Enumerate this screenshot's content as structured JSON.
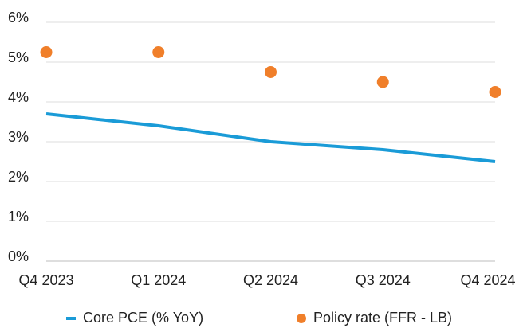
{
  "chart_data": {
    "type": "line",
    "categories": [
      "Q4 2023",
      "Q1 2024",
      "Q2 2024",
      "Q3 2024",
      "Q4 2024"
    ],
    "series": [
      {
        "name": "Core PCE (% YoY)",
        "type": "line",
        "color": "#1a9bd7",
        "values": [
          3.7,
          3.4,
          3.0,
          2.8,
          2.5
        ]
      },
      {
        "name": "Policy rate (FFR - LB)",
        "type": "scatter",
        "color": "#f07f2a",
        "values": [
          5.25,
          5.25,
          4.75,
          4.5,
          4.25
        ]
      }
    ],
    "ylim": [
      0,
      6
    ],
    "yticks": [
      {
        "value": 0,
        "label": "0%"
      },
      {
        "value": 1,
        "label": "1%"
      },
      {
        "value": 2,
        "label": "2%"
      },
      {
        "value": 3,
        "label": "3%"
      },
      {
        "value": 4,
        "label": "4%"
      },
      {
        "value": 5,
        "label": "5%"
      },
      {
        "value": 6,
        "label": "6%"
      }
    ],
    "grid": true,
    "legend": "bottom"
  }
}
